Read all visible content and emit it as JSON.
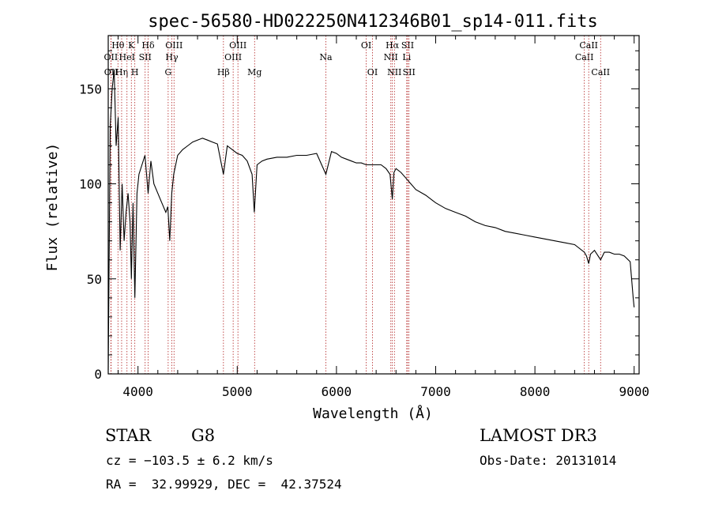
{
  "chart_data": {
    "type": "line",
    "title": "spec-56580-HD022250N412346B01_sp14-011.fits",
    "xlabel": "Wavelength (Å)",
    "ylabel": "Flux (relative)",
    "xlim": [
      3700,
      9050
    ],
    "ylim": [
      0,
      178
    ],
    "x_ticks": [
      4000,
      5000,
      6000,
      7000,
      8000,
      9000
    ],
    "x_tick_labels": [
      "4000",
      "5000",
      "6000",
      "7000",
      "8000",
      "9000"
    ],
    "y_ticks": [
      0,
      50,
      100,
      150
    ],
    "y_tick_labels": [
      "0",
      "50",
      "100",
      "150"
    ],
    "grid": false,
    "line_color": "#000000",
    "marker_color": "#b22222",
    "series": [
      {
        "x": [
          3700,
          3720,
          3740,
          3760,
          3780,
          3800,
          3820,
          3840,
          3860,
          3880,
          3900,
          3920,
          3933,
          3950,
          3968,
          3990,
          4010,
          4040,
          4070,
          4102,
          4130,
          4160,
          4200,
          4240,
          4280,
          4300,
          4320,
          4340,
          4360,
          4400,
          4450,
          4500,
          4550,
          4600,
          4650,
          4700,
          4750,
          4800,
          4861,
          4900,
          4950,
          5000,
          5050,
          5100,
          5150,
          5172,
          5183,
          5200,
          5250,
          5300,
          5400,
          5500,
          5600,
          5700,
          5800,
          5893,
          5950,
          6000,
          6050,
          6100,
          6150,
          6200,
          6250,
          6300,
          6350,
          6400,
          6450,
          6500,
          6540,
          6563,
          6580,
          6600,
          6650,
          6700,
          6750,
          6800,
          6900,
          7000,
          7100,
          7200,
          7300,
          7400,
          7500,
          7600,
          7700,
          7800,
          7900,
          8000,
          8100,
          8200,
          8300,
          8400,
          8498,
          8520,
          8542,
          8560,
          8600,
          8662,
          8700,
          8750,
          8800,
          8850,
          8900,
          8960,
          8990,
          9000
        ],
        "y": [
          2,
          130,
          150,
          160,
          120,
          135,
          65,
          100,
          70,
          85,
          95,
          80,
          50,
          90,
          40,
          95,
          105,
          110,
          115,
          95,
          112,
          100,
          95,
          90,
          85,
          88,
          70,
          95,
          105,
          115,
          118,
          120,
          122,
          123,
          124,
          123,
          122,
          121,
          105,
          120,
          118,
          116,
          115,
          112,
          105,
          85,
          95,
          110,
          112,
          113,
          114,
          114,
          115,
          115,
          116,
          105,
          117,
          116,
          114,
          113,
          112,
          111,
          111,
          110,
          110,
          110,
          110,
          108,
          105,
          92,
          106,
          108,
          106,
          103,
          100,
          97,
          94,
          90,
          87,
          85,
          83,
          80,
          78,
          77,
          75,
          74,
          73,
          72,
          71,
          70,
          69,
          68,
          64,
          62,
          58,
          63,
          65,
          60,
          64,
          64,
          63,
          63,
          62,
          59,
          40,
          35
        ]
      }
    ],
    "line_markers": [
      {
        "label": "OII",
        "wave": 3727,
        "row": 2
      },
      {
        "label": "OII",
        "wave": 3729,
        "row": 3
      },
      {
        "label": "Hθ",
        "wave": 3798,
        "row": 1
      },
      {
        "label": "Hη",
        "wave": 3835,
        "row": 3
      },
      {
        "label": "HeI",
        "wave": 3889,
        "row": 2
      },
      {
        "label": "K",
        "wave": 3933,
        "row": 1
      },
      {
        "label": "H",
        "wave": 3968,
        "row": 3
      },
      {
        "label": "SII",
        "wave": 4072,
        "row": 2
      },
      {
        "label": "Hδ",
        "wave": 4102,
        "row": 1
      },
      {
        "label": "G",
        "wave": 4304,
        "row": 3
      },
      {
        "label": "Hγ",
        "wave": 4341,
        "row": 2
      },
      {
        "label": "OIII",
        "wave": 4363,
        "row": 1
      },
      {
        "label": "Hβ",
        "wave": 4861,
        "row": 3
      },
      {
        "label": "OIII",
        "wave": 4959,
        "row": 2
      },
      {
        "label": "OIII",
        "wave": 5007,
        "row": 1
      },
      {
        "label": "Mg",
        "wave": 5175,
        "row": 3
      },
      {
        "label": "Na",
        "wave": 5893,
        "row": 2
      },
      {
        "label": "OI",
        "wave": 6300,
        "row": 1
      },
      {
        "label": "OI",
        "wave": 6363,
        "row": 3
      },
      {
        "label": "NII",
        "wave": 6548,
        "row": 2
      },
      {
        "label": "Hα",
        "wave": 6563,
        "row": 1
      },
      {
        "label": "NII",
        "wave": 6584,
        "row": 3
      },
      {
        "label": "Li",
        "wave": 6708,
        "row": 2
      },
      {
        "label": "SII",
        "wave": 6717,
        "row": 1
      },
      {
        "label": "SII",
        "wave": 6731,
        "row": 3
      },
      {
        "label": "CaII",
        "wave": 8498,
        "row": 2
      },
      {
        "label": "CaII",
        "wave": 8542,
        "row": 1
      },
      {
        "label": "CaII",
        "wave": 8662,
        "row": 3
      }
    ]
  },
  "info": {
    "object_class": "STAR",
    "subclass": "G8",
    "survey": "LAMOST DR3",
    "redshift_text": "cz = −103.5 ± 6.2 km/s",
    "obs_date_text": "Obs-Date: 20131014",
    "coords_text": "RA =  32.99929, DEC =  42.37524"
  }
}
